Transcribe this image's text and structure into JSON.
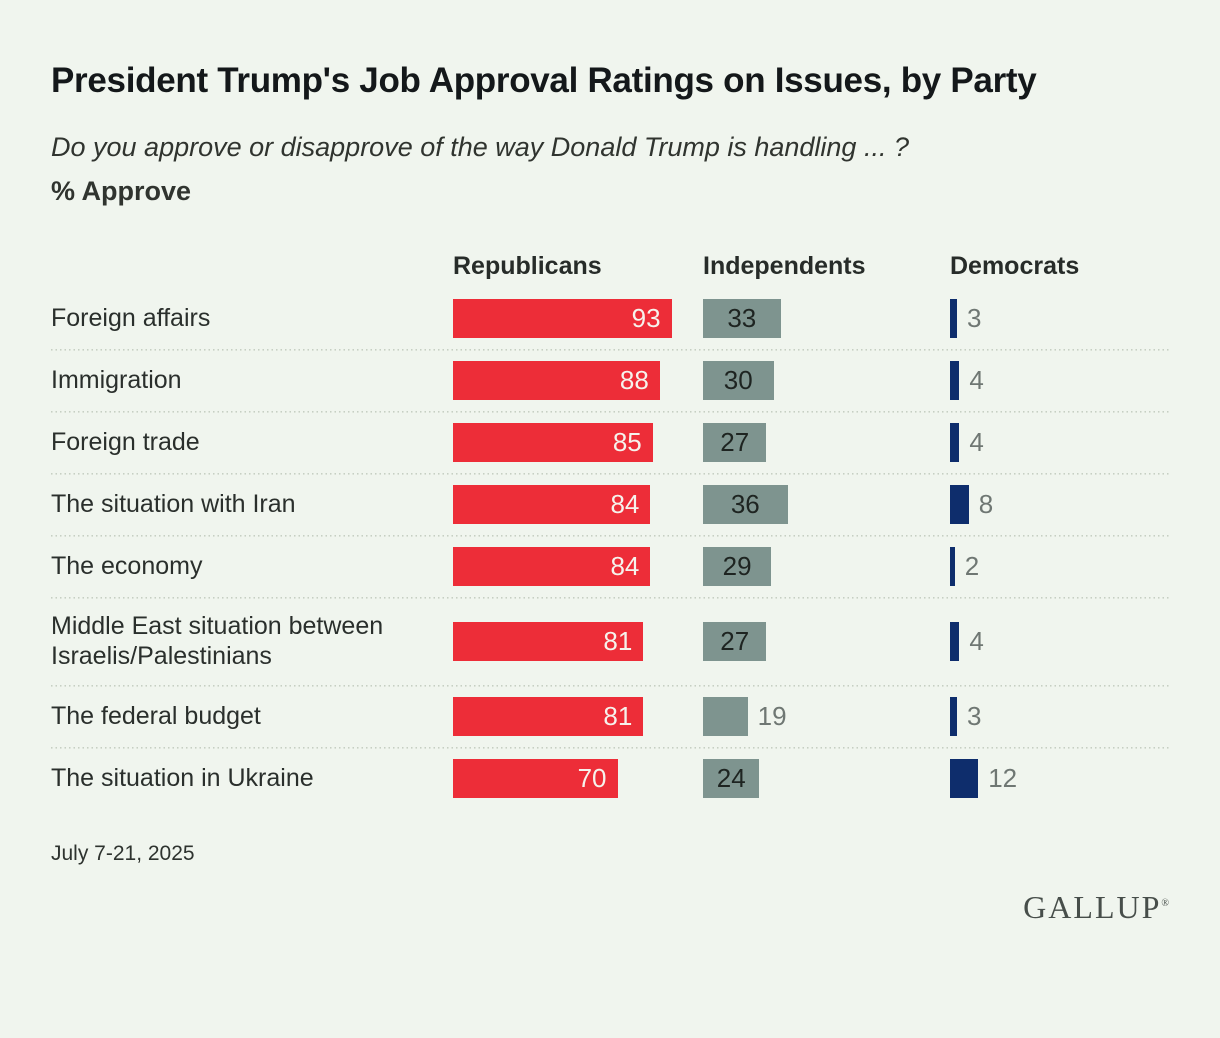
{
  "title": "President Trump's Job Approval Ratings on Issues, by Party",
  "subtitle": "Do you approve or disapprove of the way Donald Trump is handling ... ?",
  "measure_label": "% Approve",
  "footnote": "July 7-21, 2025",
  "logo_text": "GALLUP",
  "chart_data": {
    "type": "bar",
    "orientation": "horizontal",
    "title": "President Trump's Job Approval Ratings on Issues, by Party",
    "value_unit": "% approve",
    "xlim": [
      0,
      100
    ],
    "grid": "off",
    "legend_position": "column-headers-top",
    "categories": [
      "Foreign affairs",
      "Immigration",
      "Foreign trade",
      "The situation with Iran",
      "The economy",
      "Middle East situation between Israelis/Palestinians",
      "The federal budget",
      "The situation in Ukraine"
    ],
    "series": [
      {
        "name": "Republicans",
        "color": "#ED2D38",
        "values": [
          93,
          88,
          85,
          84,
          84,
          81,
          81,
          70
        ]
      },
      {
        "name": "Independents",
        "color": "#7E948F",
        "values": [
          33,
          30,
          27,
          36,
          29,
          27,
          19,
          24
        ]
      },
      {
        "name": "Democrats",
        "color": "#0E2D6C",
        "values": [
          3,
          4,
          4,
          8,
          2,
          4,
          3,
          12
        ]
      }
    ],
    "colors": {
      "background": "#F0F5EE",
      "republicans_bar": "#ED2D38",
      "independents_bar": "#7E948F",
      "democrats_bar": "#0E2D6C",
      "label_inside_republican": "#F6F2EC",
      "label_inside_independent": "#1E2421",
      "label_outside": "#6F7773"
    }
  }
}
